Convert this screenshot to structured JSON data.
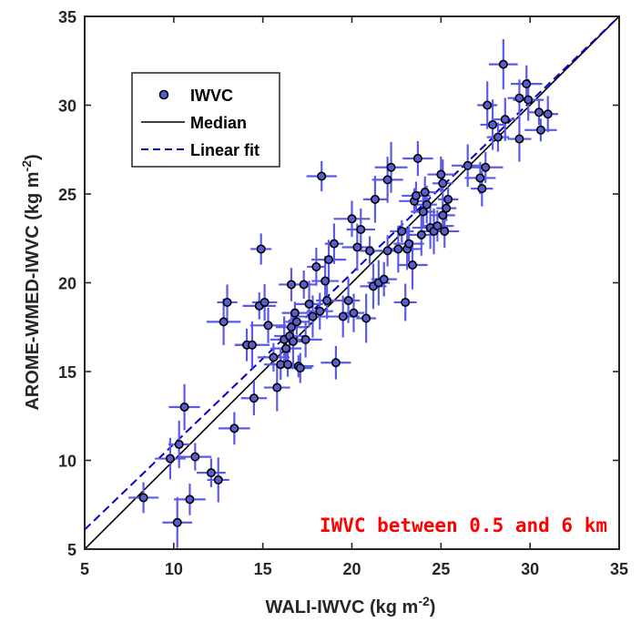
{
  "chart_data": {
    "type": "scatter",
    "title": "",
    "xlabel": "WALI-IWVC (kg m",
    "xlabel_sup": "-2",
    "xlabel_close": ")",
    "ylabel": "AROME-WMED-IWVC (kg m",
    "ylabel_sup": "-2",
    "ylabel_close": ")",
    "xlim": [
      5,
      35
    ],
    "ylim": [
      5,
      35
    ],
    "xticks": [
      5,
      10,
      15,
      20,
      25,
      30,
      35
    ],
    "yticks": [
      5,
      10,
      15,
      20,
      25,
      30,
      35
    ],
    "legend_position": "top-left",
    "legend": [
      "IWVC",
      "Median",
      "Linear fit"
    ],
    "annotation": "IWVC between 0.5 and 6 km",
    "colors": {
      "points_fill": "#5a5fc8",
      "error_bars": "#5b5bea",
      "median_line": "#000000",
      "fit_line": "#0000cc",
      "annotation": "#ff0000",
      "axes": "#262626"
    },
    "median_line": [
      [
        5,
        5
      ],
      [
        35,
        35
      ]
    ],
    "linear_fit": [
      [
        5,
        6.1
      ],
      [
        35,
        35
      ]
    ],
    "series": [
      {
        "name": "IWVC",
        "points": [
          [
            8.3,
            7.9
          ],
          [
            10.2,
            6.5
          ],
          [
            9.8,
            10.1
          ],
          [
            10.3,
            10.9
          ],
          [
            10.6,
            13.0
          ],
          [
            10.9,
            7.8
          ],
          [
            11.2,
            10.2
          ],
          [
            12.1,
            9.3
          ],
          [
            12.5,
            8.9
          ],
          [
            12.8,
            17.8
          ],
          [
            13.0,
            18.9
          ],
          [
            13.4,
            11.8
          ],
          [
            14.1,
            16.5
          ],
          [
            14.4,
            16.5
          ],
          [
            14.5,
            13.5
          ],
          [
            14.8,
            18.7
          ],
          [
            14.9,
            21.9
          ],
          [
            15.1,
            18.9
          ],
          [
            15.3,
            17.6
          ],
          [
            15.6,
            15.8
          ],
          [
            15.8,
            14.1
          ],
          [
            16.0,
            15.4
          ],
          [
            16.2,
            16.8
          ],
          [
            16.3,
            16.3
          ],
          [
            16.4,
            15.4
          ],
          [
            16.5,
            17.0
          ],
          [
            16.6,
            17.5
          ],
          [
            16.6,
            19.9
          ],
          [
            16.7,
            16.7
          ],
          [
            16.8,
            18.3
          ],
          [
            16.9,
            17.8
          ],
          [
            17.0,
            15.3
          ],
          [
            17.1,
            15.2
          ],
          [
            17.3,
            19.9
          ],
          [
            17.4,
            16.8
          ],
          [
            17.6,
            18.8
          ],
          [
            17.8,
            18.1
          ],
          [
            18.0,
            20.9
          ],
          [
            18.2,
            18.4
          ],
          [
            18.3,
            26.0
          ],
          [
            18.5,
            20.1
          ],
          [
            18.6,
            19.0
          ],
          [
            18.7,
            21.3
          ],
          [
            19.0,
            22.2
          ],
          [
            19.1,
            15.5
          ],
          [
            19.5,
            18.1
          ],
          [
            19.8,
            19.0
          ],
          [
            20.0,
            23.6
          ],
          [
            20.1,
            18.3
          ],
          [
            20.3,
            22.0
          ],
          [
            20.5,
            23.0
          ],
          [
            20.8,
            18.0
          ],
          [
            21.0,
            21.8
          ],
          [
            21.2,
            19.8
          ],
          [
            21.3,
            24.7
          ],
          [
            21.5,
            20.0
          ],
          [
            21.8,
            20.2
          ],
          [
            22.0,
            21.8
          ],
          [
            22.0,
            25.8
          ],
          [
            22.2,
            26.5
          ],
          [
            22.6,
            21.9
          ],
          [
            22.8,
            22.9
          ],
          [
            23.0,
            18.9
          ],
          [
            23.1,
            21.9
          ],
          [
            23.2,
            22.2
          ],
          [
            23.4,
            21.0
          ],
          [
            23.5,
            24.6
          ],
          [
            23.6,
            24.9
          ],
          [
            23.7,
            27.0
          ],
          [
            23.9,
            22.7
          ],
          [
            24.0,
            24.0
          ],
          [
            24.1,
            25.1
          ],
          [
            24.2,
            24.4
          ],
          [
            24.4,
            23.1
          ],
          [
            24.6,
            22.9
          ],
          [
            24.8,
            23.2
          ],
          [
            25.0,
            26.1
          ],
          [
            25.1,
            25.6
          ],
          [
            25.1,
            23.8
          ],
          [
            25.2,
            22.9
          ],
          [
            25.3,
            24.2
          ],
          [
            25.4,
            24.7
          ],
          [
            26.5,
            26.6
          ],
          [
            27.2,
            25.9
          ],
          [
            27.3,
            25.3
          ],
          [
            27.5,
            26.5
          ],
          [
            27.6,
            30.0
          ],
          [
            27.9,
            28.9
          ],
          [
            28.2,
            28.2
          ],
          [
            28.5,
            32.3
          ],
          [
            28.6,
            29.2
          ],
          [
            29.4,
            28.1
          ],
          [
            29.4,
            30.4
          ],
          [
            29.8,
            31.2
          ],
          [
            29.9,
            30.3
          ],
          [
            30.5,
            29.6
          ],
          [
            30.6,
            28.6
          ],
          [
            31.0,
            29.5
          ]
        ]
      }
    ]
  }
}
